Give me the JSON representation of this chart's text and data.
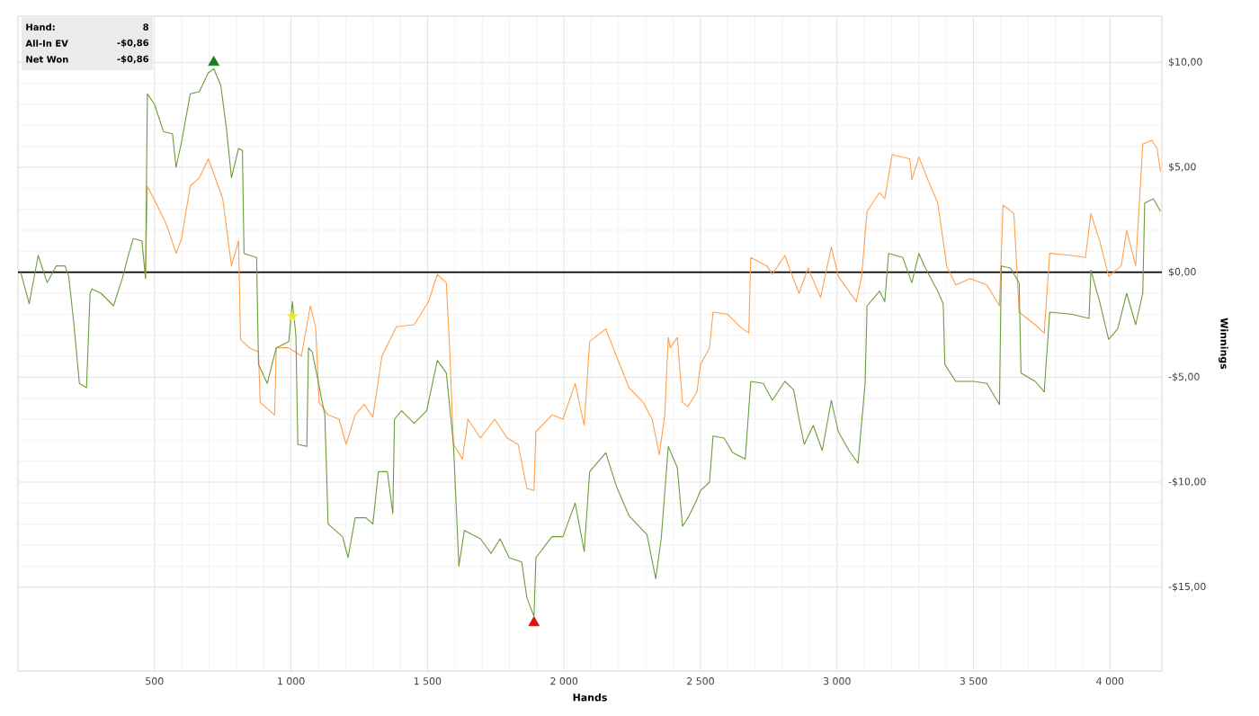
{
  "chart_data": {
    "type": "line",
    "xlabel": "Hands",
    "ylabel": "Winnings",
    "xlim": [
      0,
      4190
    ],
    "ylim": [
      -19,
      12.2
    ],
    "xticks": [
      500,
      {
        "value": 1000,
        "label": "1 000"
      },
      {
        "value": 1500,
        "label": "1 500"
      },
      {
        "value": 2000,
        "label": "2 000"
      },
      {
        "value": 2500,
        "label": "2 500"
      },
      {
        "value": 3000,
        "label": "3 000"
      },
      {
        "value": 3500,
        "label": "3 500"
      },
      {
        "value": 4000,
        "label": "4 000"
      }
    ],
    "yticks": [
      {
        "value": -15,
        "label": "-$15,00"
      },
      {
        "value": -10,
        "label": "-$10,00"
      },
      {
        "value": -5,
        "label": "-$5,00"
      },
      {
        "value": 0,
        "label": "$0,00"
      },
      {
        "value": 5,
        "label": "$5,00"
      },
      {
        "value": 10,
        "label": "$10,00"
      }
    ],
    "grid": true,
    "legend": false,
    "marker": "none",
    "line_style": "solid",
    "ref_lines": [
      {
        "axis": "y",
        "value": 0,
        "color": "#000000"
      }
    ],
    "annotations": [
      "Hand:",
      "8",
      "All-In EV",
      "-$0,86",
      "Net Won",
      "-$0,86"
    ],
    "series": [
      {
        "color": "#ffa04c",
        "x": [
          467,
          474,
          513,
          546,
          579,
          599,
          631,
          664,
          697,
          717,
          750,
          782,
          808,
          815,
          848,
          881,
          887,
          940,
          946,
          992,
          1038,
          1071,
          1090,
          1103,
          1136,
          1176,
          1202,
          1235,
          1268,
          1300,
          1333,
          1386,
          1451,
          1504,
          1536,
          1569,
          1582,
          1595,
          1628,
          1648,
          1694,
          1746,
          1792,
          1832,
          1864,
          1890,
          1897,
          1956,
          1996,
          2041,
          2074,
          2094,
          2153,
          2192,
          2238,
          2290,
          2323,
          2349,
          2369,
          2382,
          2389,
          2415,
          2434,
          2454,
          2487,
          2500,
          2533,
          2546,
          2599,
          2645,
          2677,
          2684,
          2743,
          2763,
          2809,
          2828,
          2861,
          2894,
          2940,
          2979,
          3005,
          3071,
          3090,
          3110,
          3156,
          3175,
          3202,
          3267,
          3274,
          3300,
          3333,
          3369,
          3402,
          3435,
          3487,
          3549,
          3595,
          3608,
          3648,
          3667,
          3726,
          3759,
          3779,
          3858,
          3910,
          3930,
          3962,
          3995,
          4041,
          4061,
          4094,
          4120,
          4153,
          4172,
          4185
        ],
        "values": [
          -0.3,
          4.1,
          3.1,
          2.2,
          0.9,
          1.6,
          4.1,
          4.5,
          5.4,
          4.7,
          3.5,
          0.3,
          1.5,
          -3.2,
          -3.6,
          -3.8,
          -6.2,
          -6.8,
          -3.6,
          -3.6,
          -4.0,
          -1.6,
          -2.6,
          -6.2,
          -6.8,
          -7.0,
          -8.2,
          -6.8,
          -6.3,
          -6.9,
          -4.0,
          -2.6,
          -2.5,
          -1.4,
          -0.1,
          -0.5,
          -3.9,
          -8.2,
          -8.9,
          -7.0,
          -7.9,
          -7.0,
          -7.9,
          -8.2,
          -10.3,
          -10.4,
          -7.6,
          -6.8,
          -7.0,
          -5.3,
          -7.3,
          -3.3,
          -2.7,
          -4.0,
          -5.5,
          -6.2,
          -7.0,
          -8.7,
          -6.8,
          -3.1,
          -3.6,
          -3.1,
          -6.2,
          -6.4,
          -5.7,
          -4.4,
          -3.6,
          -1.9,
          -2.0,
          -2.6,
          -2.9,
          0.7,
          0.3,
          -0.1,
          0.8,
          0.1,
          -1.0,
          0.2,
          -1.2,
          1.2,
          -0.2,
          -1.4,
          -0.2,
          2.9,
          3.8,
          3.5,
          5.6,
          5.4,
          4.4,
          5.5,
          4.4,
          3.3,
          0.3,
          -0.6,
          -0.3,
          -0.6,
          -1.6,
          3.2,
          2.8,
          -1.9,
          -2.5,
          -2.9,
          0.9,
          0.8,
          0.7,
          2.8,
          1.5,
          -0.2,
          0.3,
          2.0,
          0.3,
          6.1,
          6.3,
          5.9,
          4.8
        ]
      },
      {
        "color": "#6e9c3c",
        "x": [
          10,
          41,
          74,
          107,
          140,
          172,
          186,
          205,
          225,
          251,
          264,
          271,
          304,
          350,
          382,
          402,
          422,
          454,
          467,
          474,
          500,
          533,
          566,
          579,
          599,
          631,
          664,
          697,
          717,
          743,
          763,
          782,
          808,
          822,
          828,
          874,
          881,
          913,
          946,
          992,
          1005,
          1018,
          1025,
          1058,
          1064,
          1078,
          1124,
          1136,
          1189,
          1209,
          1235,
          1275,
          1300,
          1320,
          1353,
          1373,
          1379,
          1405,
          1451,
          1497,
          1536,
          1569,
          1595,
          1615,
          1635,
          1694,
          1733,
          1766,
          1799,
          1845,
          1864,
          1890,
          1897,
          1956,
          1996,
          2041,
          2074,
          2094,
          2153,
          2192,
          2238,
          2304,
          2336,
          2356,
          2382,
          2415,
          2434,
          2454,
          2481,
          2500,
          2533,
          2546,
          2586,
          2618,
          2664,
          2684,
          2730,
          2763,
          2809,
          2841,
          2861,
          2880,
          2913,
          2946,
          2979,
          3005,
          3044,
          3077,
          3103,
          3110,
          3156,
          3175,
          3189,
          3241,
          3274,
          3300,
          3320,
          3369,
          3389,
          3395,
          3435,
          3500,
          3549,
          3595,
          3602,
          3635,
          3667,
          3674,
          3726,
          3759,
          3779,
          3858,
          3923,
          3930,
          3962,
          3995,
          4028,
          4061,
          4094,
          4120,
          4127,
          4159,
          4185
        ],
        "values": [
          0.0,
          -1.5,
          0.8,
          -0.5,
          0.3,
          0.3,
          -0.2,
          -2.5,
          -5.3,
          -5.5,
          -1.0,
          -0.8,
          -1.0,
          -1.6,
          -0.3,
          0.7,
          1.6,
          1.5,
          -0.3,
          8.5,
          8.0,
          6.7,
          6.6,
          5.0,
          6.2,
          8.5,
          8.6,
          9.5,
          9.7,
          8.9,
          6.9,
          4.5,
          5.9,
          5.8,
          0.9,
          0.7,
          -4.4,
          -5.3,
          -3.6,
          -3.3,
          -1.4,
          -3.0,
          -8.2,
          -8.3,
          -3.6,
          -3.8,
          -6.8,
          -12.0,
          -12.6,
          -13.6,
          -11.7,
          -11.7,
          -12.0,
          -9.5,
          -9.5,
          -11.5,
          -7.0,
          -6.6,
          -7.2,
          -6.6,
          -4.2,
          -4.8,
          -8.2,
          -14.0,
          -12.3,
          -12.7,
          -13.4,
          -12.7,
          -13.6,
          -13.8,
          -15.5,
          -16.4,
          -13.6,
          -12.6,
          -12.6,
          -11.0,
          -13.3,
          -9.5,
          -8.6,
          -10.2,
          -11.6,
          -12.5,
          -14.6,
          -12.7,
          -8.3,
          -9.3,
          -12.1,
          -11.7,
          -11.0,
          -10.4,
          -10.0,
          -7.8,
          -7.9,
          -8.6,
          -8.9,
          -5.2,
          -5.3,
          -6.1,
          -5.2,
          -5.6,
          -7.0,
          -8.2,
          -7.3,
          -8.5,
          -6.1,
          -7.6,
          -8.5,
          -9.1,
          -5.3,
          -1.6,
          -0.9,
          -1.4,
          0.9,
          0.7,
          -0.5,
          0.9,
          0.3,
          -0.9,
          -1.5,
          -4.4,
          -5.2,
          -5.2,
          -5.3,
          -6.3,
          0.3,
          0.2,
          -0.5,
          -4.8,
          -5.2,
          -5.7,
          -1.9,
          -2.0,
          -2.2,
          0.1,
          -1.4,
          -3.2,
          -2.7,
          -1.0,
          -2.5,
          -1.0,
          3.3,
          3.5,
          2.9
        ]
      },
      {
        "type": "scatter",
        "marker": "triangle",
        "color": "#1e7d1e",
        "x": [
          717
        ],
        "values": [
          10.0
        ]
      },
      {
        "type": "scatter",
        "marker": "triangle",
        "color": "#e01010",
        "x": [
          1890
        ],
        "values": [
          -16.7
        ]
      },
      {
        "type": "scatter",
        "marker": "star",
        "color": "#f2e627",
        "x": [
          1005
        ],
        "values": [
          -2.1
        ]
      }
    ]
  }
}
